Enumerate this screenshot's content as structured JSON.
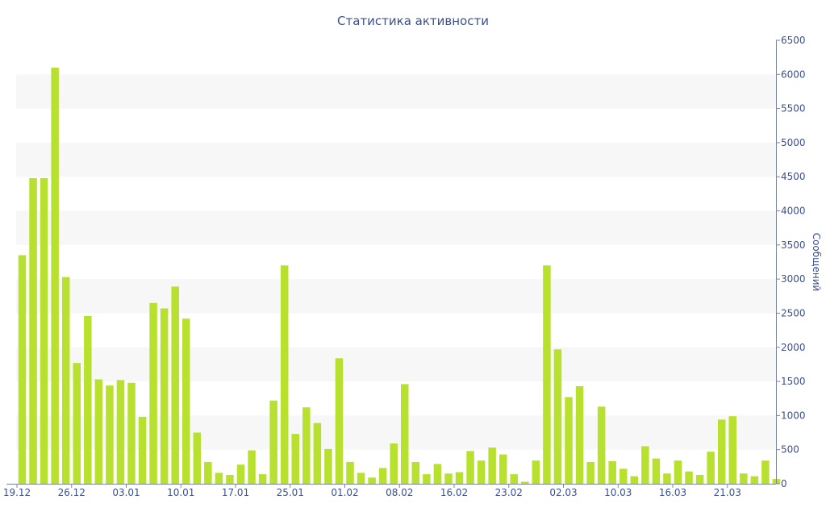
{
  "chart_data": {
    "type": "bar",
    "title": "Статистика активности",
    "ylabel": "Сообщений",
    "xlabel": "",
    "ylim": [
      0,
      6500
    ],
    "yticks": [
      0,
      500,
      1000,
      1500,
      2000,
      2500,
      3000,
      3500,
      4000,
      4500,
      5000,
      5500,
      6000,
      6500
    ],
    "y_axis_side": "right",
    "grid": "alternating horizontal bands",
    "bar_color": "#b8e02e",
    "band_color": "#f7f7f7",
    "text_color": "#3b4f8f",
    "x_tick_labels": [
      {
        "index": 0,
        "label": "19.12"
      },
      {
        "index": 5,
        "label": "26.12"
      },
      {
        "index": 10,
        "label": "03.01"
      },
      {
        "index": 15,
        "label": "10.01"
      },
      {
        "index": 20,
        "label": "17.01"
      },
      {
        "index": 25,
        "label": "25.01"
      },
      {
        "index": 30,
        "label": "01.02"
      },
      {
        "index": 35,
        "label": "08.02"
      },
      {
        "index": 40,
        "label": "16.02"
      },
      {
        "index": 45,
        "label": "23.02"
      },
      {
        "index": 50,
        "label": "02.03"
      },
      {
        "index": 55,
        "label": "10.03"
      },
      {
        "index": 60,
        "label": "16.03"
      },
      {
        "index": 65,
        "label": "21.03"
      }
    ],
    "values": [
      3350,
      4480,
      4480,
      6100,
      3030,
      1770,
      2460,
      1530,
      1440,
      1520,
      1480,
      980,
      2650,
      2570,
      2890,
      2420,
      750,
      320,
      160,
      130,
      280,
      490,
      140,
      1220,
      3200,
      730,
      1120,
      890,
      510,
      1840,
      320,
      160,
      90,
      230,
      590,
      1460,
      320,
      140,
      290,
      150,
      170,
      480,
      340,
      530,
      430,
      140,
      30,
      340,
      3200,
      1970,
      1270,
      1430,
      320,
      1130,
      330,
      220,
      110,
      550,
      370,
      150,
      340,
      180,
      130,
      470,
      940,
      990,
      150,
      110,
      340,
      70
    ]
  }
}
